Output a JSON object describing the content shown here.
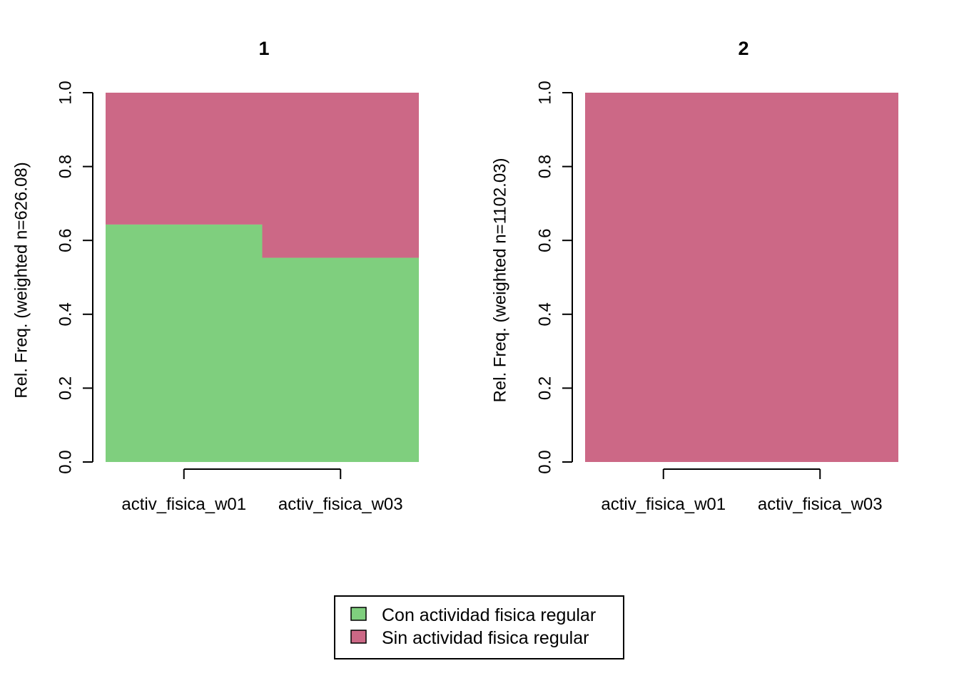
{
  "chart_data": [
    {
      "type": "bar",
      "subtype": "stacked-proportion",
      "title": "1",
      "ylabel": "Rel. Freq. (weighted n=626.08)",
      "ylim": [
        0,
        1
      ],
      "yticks": [
        "0.0",
        "0.2",
        "0.4",
        "0.6",
        "0.8",
        "1.0"
      ],
      "categories": [
        "activ_fisica_w01",
        "activ_fisica_w03"
      ],
      "series": [
        {
          "name": "Con actividad fisica regular",
          "values": [
            0.643,
            0.553
          ],
          "color": "#7FCF7E"
        },
        {
          "name": "Sin actividad fisica regular",
          "values": [
            0.357,
            0.447
          ],
          "color": "#CC6886"
        }
      ]
    },
    {
      "type": "bar",
      "subtype": "stacked-proportion",
      "title": "2",
      "ylabel": "Rel. Freq. (weighted n=1102.03)",
      "ylim": [
        0,
        1
      ],
      "yticks": [
        "0.0",
        "0.2",
        "0.4",
        "0.6",
        "0.8",
        "1.0"
      ],
      "categories": [
        "activ_fisica_w01",
        "activ_fisica_w03"
      ],
      "series": [
        {
          "name": "Con actividad fisica regular",
          "values": [
            0.0,
            0.0
          ],
          "color": "#7FCF7E"
        },
        {
          "name": "Sin actividad fisica regular",
          "values": [
            1.0,
            1.0
          ],
          "color": "#CC6886"
        }
      ]
    }
  ],
  "legend": {
    "placement": "bottom-center",
    "items": [
      {
        "label": "Con actividad fisica regular",
        "color": "#7FCF7E"
      },
      {
        "label": "Sin actividad fisica regular",
        "color": "#CC6886"
      }
    ]
  }
}
